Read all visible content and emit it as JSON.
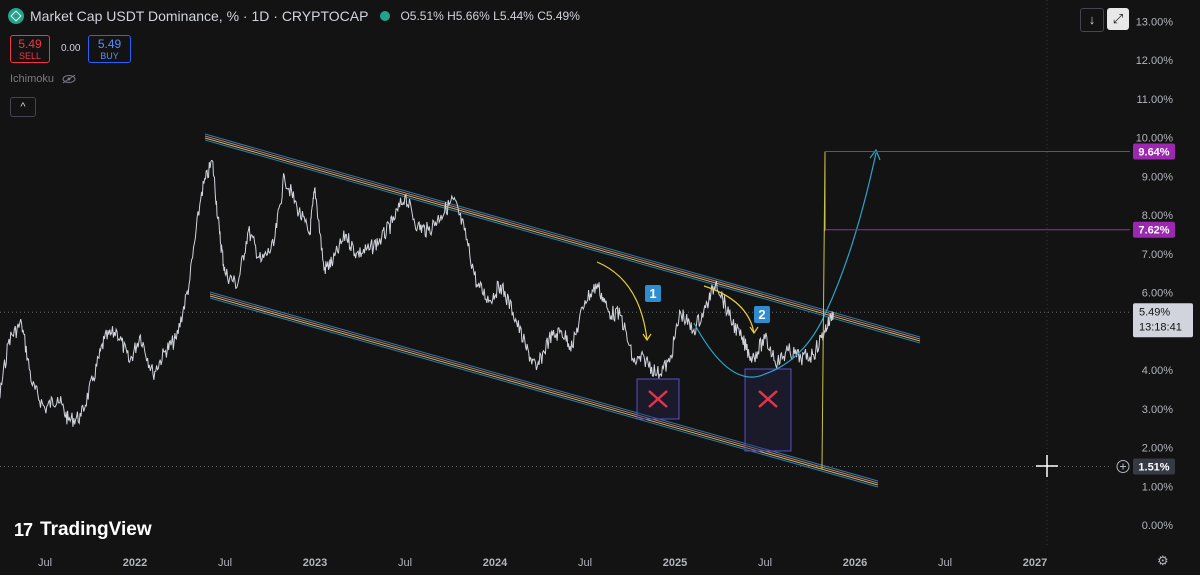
{
  "header": {
    "title": "Market Cap USDT Dominance, % · 1D · CRYPTOCAP",
    "ohlc": "O5.51% H5.66% L5.44% C5.49%"
  },
  "trade": {
    "sell_price": "5.49",
    "sell_label": "SELL",
    "spread": "0.00",
    "buy_price": "5.49",
    "buy_label": "BUY"
  },
  "indicator": {
    "name": "Ichimoku"
  },
  "watermark": {
    "brand": "TradingView"
  },
  "toolbar": {
    "collapse_label": "^",
    "down_label": "↓",
    "fullscreen_label": "⤢"
  },
  "chart_data": {
    "type": "line",
    "symbol": "USDT.D",
    "y_axis_ticks": [
      "13.00%",
      "12.00%",
      "11.00%",
      "10.00%",
      "9.00%",
      "8.00%",
      "7.00%",
      "6.00%",
      "5.00%",
      "4.00%",
      "3.00%",
      "2.00%",
      "1.00%",
      "0.00%"
    ],
    "y_tick_values": [
      13,
      12,
      11,
      10,
      9,
      8,
      7,
      6,
      5,
      4,
      3,
      2,
      1,
      0
    ],
    "x_axis_ticks": [
      "Jul",
      "2022",
      "Jul",
      "2023",
      "Jul",
      "2024",
      "Jul",
      "2025",
      "Jul",
      "2026",
      "Jul",
      "2027"
    ],
    "x_tick_years": [
      2021.5,
      2022.0,
      2022.5,
      2023.0,
      2023.5,
      2024.0,
      2024.5,
      2025.0,
      2025.5,
      2026.0,
      2026.5,
      2027.0
    ],
    "ylim": [
      0,
      13.5
    ],
    "series": [
      {
        "values_x": [
          2021.17,
          2021.23,
          2021.3,
          2021.37,
          2021.43,
          2021.5,
          2021.57,
          2021.63,
          2021.7,
          2021.77,
          2021.83,
          2021.9,
          2021.97,
          2022.03,
          2022.1,
          2022.17,
          2022.23,
          2022.3,
          2022.37,
          2022.43,
          2022.47,
          2022.5,
          2022.57,
          2022.63,
          2022.7,
          2022.77,
          2022.83,
          2022.9,
          2022.97,
          2023.0,
          2023.05,
          2023.1,
          2023.17,
          2023.23,
          2023.3,
          2023.37,
          2023.43,
          2023.5,
          2023.57,
          2023.63,
          2023.7,
          2023.77,
          2023.83,
          2023.9,
          2023.97,
          2024.03,
          2024.1,
          2024.17,
          2024.23,
          2024.3,
          2024.37,
          2024.43,
          2024.5,
          2024.57,
          2024.63,
          2024.7,
          2024.77,
          2024.83,
          2024.9,
          2024.97,
          2025.03,
          2025.1,
          2025.17,
          2025.23,
          2025.3,
          2025.37,
          2025.43,
          2025.5,
          2025.57,
          2025.63,
          2025.7,
          2025.77,
          2025.83,
          2025.88
        ],
        "values_y": [
          2.3,
          2.8,
          4.8,
          5.2,
          3.6,
          3.0,
          3.3,
          2.7,
          2.8,
          3.8,
          4.8,
          5.0,
          4.2,
          4.9,
          3.9,
          4.5,
          4.8,
          6.2,
          8.6,
          9.4,
          7.5,
          6.5,
          6.2,
          7.6,
          6.8,
          7.2,
          9.0,
          8.2,
          7.5,
          8.7,
          6.6,
          6.8,
          7.5,
          7.0,
          7.1,
          7.4,
          7.8,
          8.5,
          7.7,
          7.6,
          8.0,
          8.4,
          7.6,
          6.2,
          5.8,
          6.2,
          5.5,
          4.6,
          4.0,
          4.8,
          5.0,
          4.6,
          5.8,
          6.2,
          5.5,
          5.4,
          4.2,
          4.3,
          3.9,
          4.2,
          5.5,
          5.0,
          5.6,
          6.3,
          5.4,
          4.8,
          4.3,
          4.8,
          4.2,
          4.5,
          4.3,
          4.4,
          5.0,
          5.49
        ]
      }
    ],
    "last_price": "5.49%",
    "countdown": "13:18:41",
    "targets": [
      {
        "label": "9.64%",
        "value": 9.64
      },
      {
        "label": "7.62%",
        "value": 7.62
      }
    ],
    "cursor_price": "1.51%",
    "cursor_value": 1.51,
    "annotations": [
      "1",
      "2"
    ],
    "colors": {
      "price": "#d1d4dc",
      "channel": "#2a7fae",
      "channel_inner": "#c9b86a",
      "arrow": "#e6cf3a",
      "curve": "#2aa4c8",
      "target": "#9c27b0",
      "vertical": "#c8c24a",
      "box_border": "#5a4fc8",
      "cross": "#e5334b",
      "badge": "#2f8ccf"
    }
  }
}
